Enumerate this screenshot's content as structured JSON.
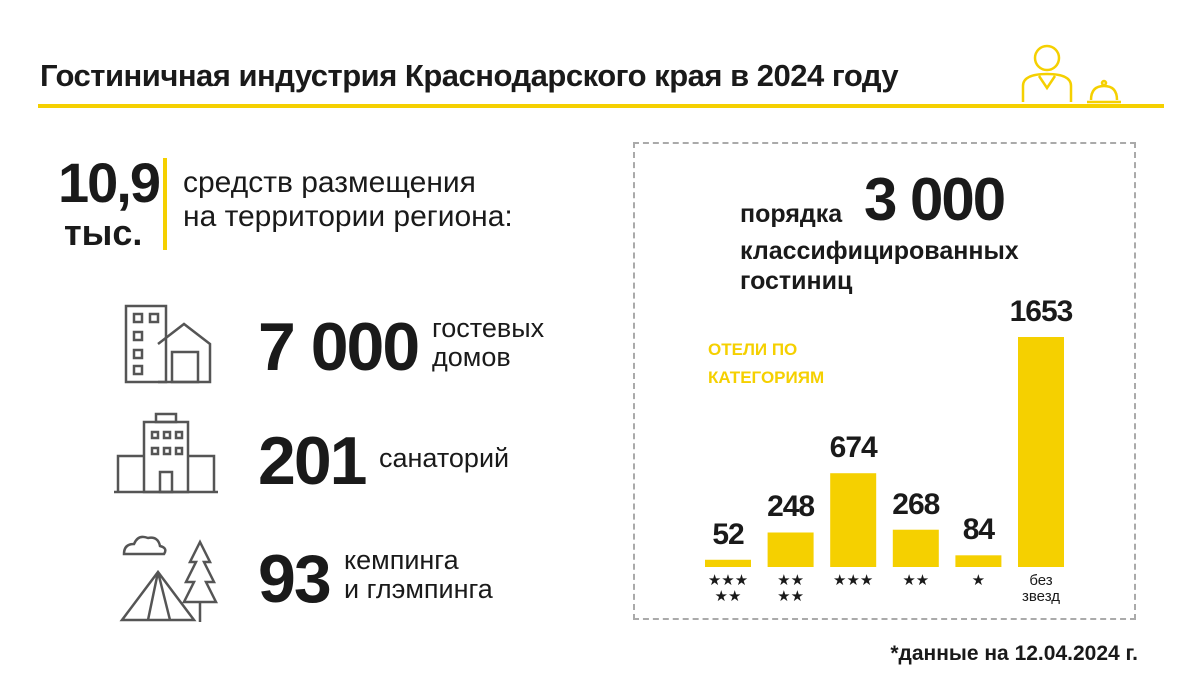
{
  "header": {
    "title": "Гостиничная индустрия Краснодарского края в 2024 году"
  },
  "summary": {
    "number": "10,9",
    "unit": "тыс.",
    "text": "средств размещения\nна территории региона:"
  },
  "items": [
    {
      "number": "7 000",
      "label": "гостевых\nдомов"
    },
    {
      "number": "201",
      "label": "санаторий"
    },
    {
      "number": "93",
      "label": "кемпинга\nи глэмпинга"
    }
  ],
  "hotels": {
    "prefix": "порядка",
    "number": "3 000",
    "text": "классифицированных\nгостиниц"
  },
  "chart_data": {
    "type": "bar",
    "title": "ОТЕЛИ ПО КАТЕГОРИЯМ",
    "categories": [
      "★★★\n★★",
      "★★\n★★",
      "★★★",
      "★★",
      "★",
      "без\nзвезд"
    ],
    "values": [
      52,
      248,
      674,
      268,
      84,
      1653
    ],
    "color": "#f5d000"
  },
  "footnote": "*данные на 12.04.2024 г."
}
